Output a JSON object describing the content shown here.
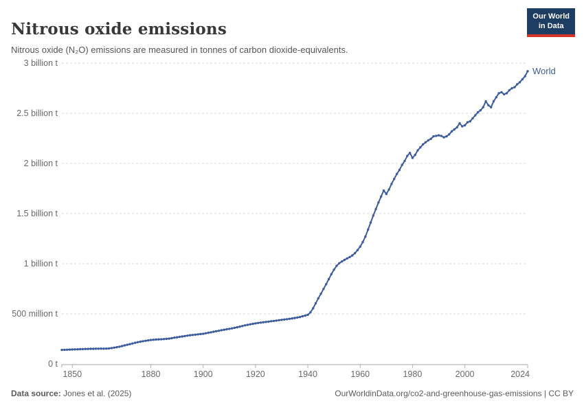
{
  "header": {
    "title": "Nitrous oxide emissions",
    "subtitle": "Nitrous oxide (N₂O) emissions are measured in tonnes of carbon dioxide-equivalents.",
    "logo": {
      "line1": "Our World",
      "line2": "in Data"
    }
  },
  "chart_data": {
    "type": "line",
    "title": "Nitrous oxide emissions",
    "ylabel": "",
    "xlabel": "",
    "unit": "tonnes of carbon dioxide-equivalents",
    "values_unit": "million tonnes of CO2-equivalents",
    "xlim": [
      1846,
      2024
    ],
    "ylim": [
      0,
      3000
    ],
    "grid": true,
    "legend_position": "end-of-line",
    "x_ticks": [
      1850,
      1880,
      1900,
      1920,
      1940,
      1960,
      1980,
      2000,
      2024
    ],
    "y_ticks": [
      {
        "value": 0,
        "label": "0 t"
      },
      {
        "value": 500,
        "label": "500 million t"
      },
      {
        "value": 1000,
        "label": "1 billion t"
      },
      {
        "value": 1500,
        "label": "1.5 billion t"
      },
      {
        "value": 2000,
        "label": "2 billion t"
      },
      {
        "value": 2500,
        "label": "2.5 billion t"
      },
      {
        "value": 3000,
        "label": "3 billion t"
      }
    ],
    "series": [
      {
        "name": "World",
        "end_label": "World",
        "years": {
          "start": 1846,
          "end": 2024,
          "step": 1
        },
        "values": [
          140,
          141,
          142,
          143,
          144,
          145,
          146,
          147,
          148,
          149,
          150,
          151,
          151,
          152,
          152,
          153,
          152,
          153,
          155,
          158,
          162,
          167,
          172,
          178,
          185,
          191,
          197,
          204,
          211,
          217,
          222,
          227,
          231,
          235,
          239,
          241,
          243,
          245,
          246,
          248,
          250,
          253,
          257,
          262,
          266,
          270,
          274,
          278,
          282,
          286,
          289,
          292,
          295,
          298,
          301,
          306,
          311,
          316,
          321,
          326,
          331,
          336,
          341,
          346,
          350,
          355,
          360,
          366,
          372,
          378,
          385,
          390,
          395,
          400,
          405,
          409,
          412,
          416,
          419,
          422,
          426,
          429,
          432,
          436,
          440,
          443,
          446,
          450,
          454,
          458,
          463,
          468,
          475,
          482,
          490,
          515,
          555,
          605,
          655,
          700,
          748,
          795,
          845,
          895,
          940,
          978,
          1005,
          1022,
          1038,
          1052,
          1066,
          1082,
          1105,
          1135,
          1170,
          1215,
          1270,
          1340,
          1410,
          1480,
          1545,
          1610,
          1670,
          1730,
          1695,
          1740,
          1795,
          1845,
          1895,
          1935,
          1985,
          2025,
          2075,
          2105,
          2055,
          2085,
          2130,
          2160,
          2190,
          2210,
          2230,
          2245,
          2270,
          2275,
          2280,
          2275,
          2260,
          2270,
          2290,
          2320,
          2340,
          2360,
          2400,
          2370,
          2380,
          2410,
          2420,
          2450,
          2480,
          2510,
          2530,
          2560,
          2620,
          2580,
          2560,
          2620,
          2660,
          2700,
          2710,
          2690,
          2700,
          2730,
          2750,
          2760,
          2790,
          2810,
          2840,
          2870,
          2920
        ]
      }
    ]
  },
  "footer": {
    "source_label": "Data source:",
    "source_value": " Jones et al. (2025)",
    "credit": "OurWorldinData.org/co2-and-greenhouse-gas-emissions | CC BY"
  },
  "colors": {
    "line": "#3d5c9c",
    "grid": "#d9d9d9",
    "axis": "#a5a5a5",
    "tick": "#b3b3b3",
    "tick_label": "#696969",
    "title": "#383838",
    "subtitle": "#555555",
    "footer": "#5b5b5b",
    "logo_bg": "#1d3d63",
    "logo_accent": "#d8352a"
  }
}
